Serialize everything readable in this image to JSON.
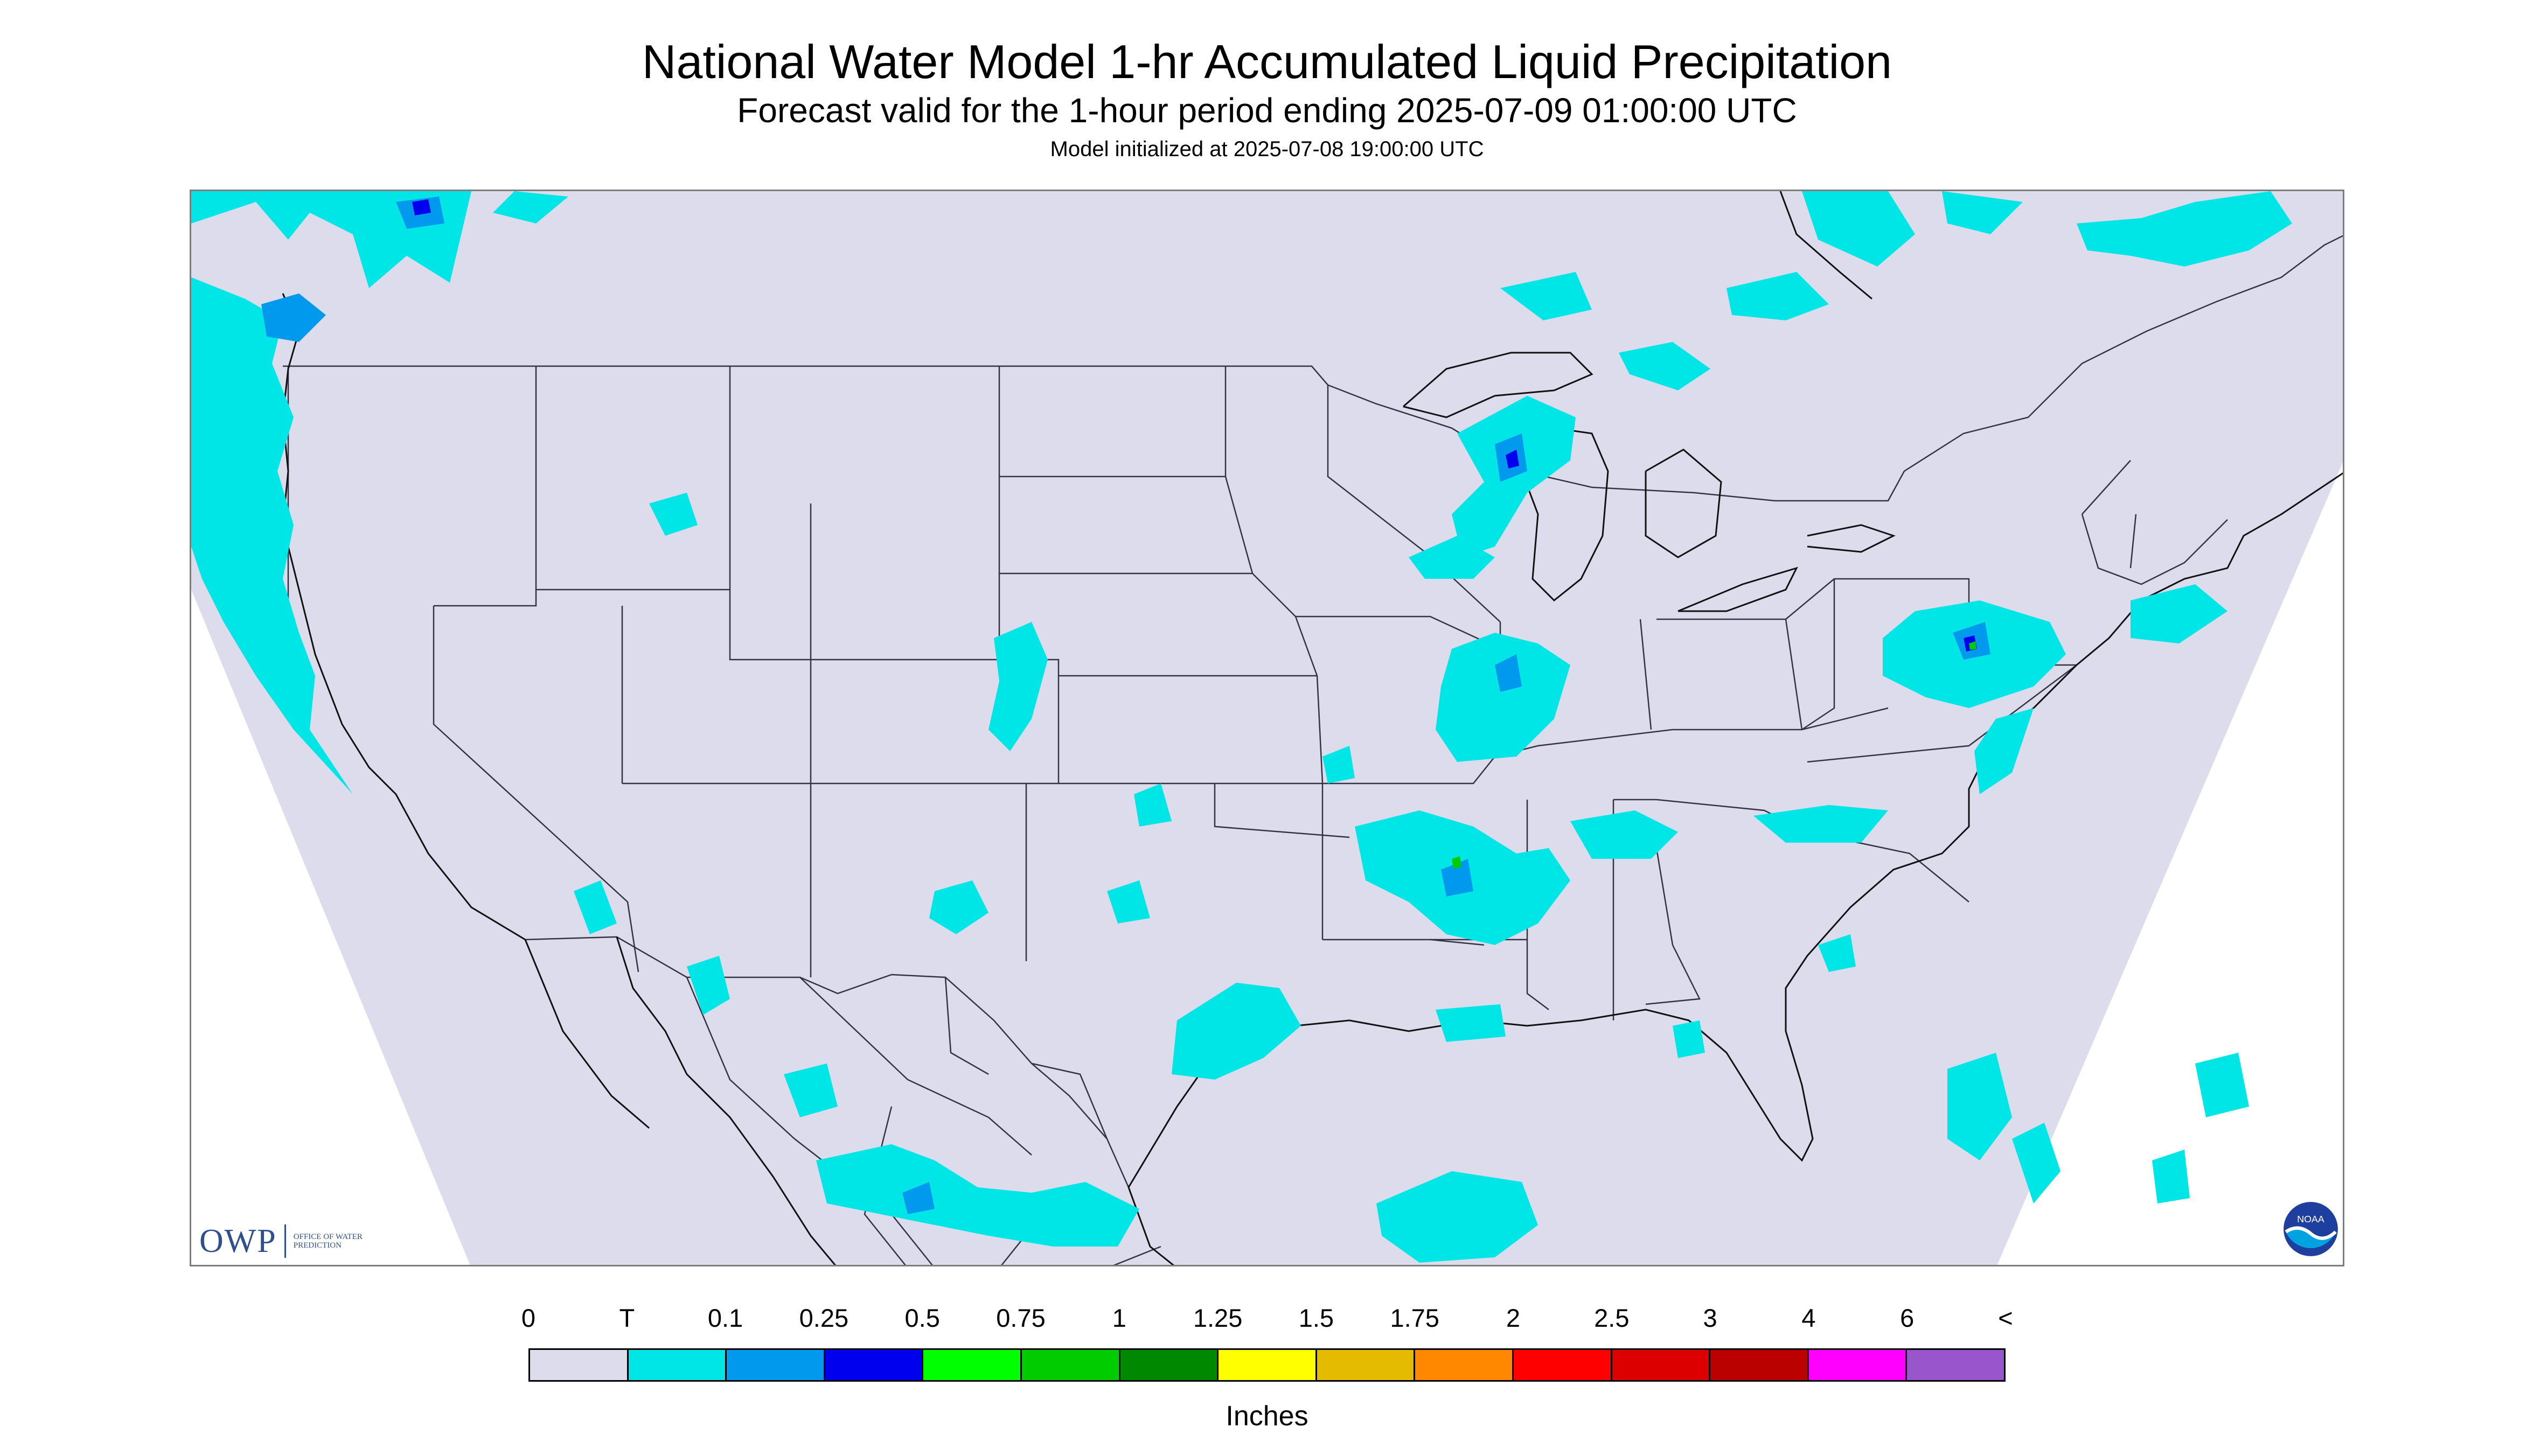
{
  "header": {
    "title": "National Water Model 1-hr Accumulated Liquid Precipitation",
    "subtitle": "Forecast valid for the 1-hour period ending 2025-07-09 01:00:00 UTC",
    "init": "Model initialized at 2025-07-08 19:00:00 UTC"
  },
  "logos": {
    "owp_mark": "OWP",
    "owp_sub": "OFFICE OF WATER PREDICTION",
    "noaa_mark": "NOAA"
  },
  "legend": {
    "units": "Inches",
    "tick_labels": [
      "0",
      "T",
      "0.1",
      "0.25",
      "0.5",
      "0.75",
      "1",
      "1.25",
      "1.5",
      "1.75",
      "2",
      "2.5",
      "3",
      "4",
      "6",
      "<"
    ],
    "bins": [
      {
        "color": "#dcdcec"
      },
      {
        "color": "#00e5e5"
      },
      {
        "color": "#0099ee"
      },
      {
        "color": "#0000ee"
      },
      {
        "color": "#00ff00"
      },
      {
        "color": "#00cc00"
      },
      {
        "color": "#008800"
      },
      {
        "color": "#ffff00"
      },
      {
        "color": "#e5bb00"
      },
      {
        "color": "#ff8800"
      },
      {
        "color": "#ff0000"
      },
      {
        "color": "#dd0000"
      },
      {
        "color": "#bb0000"
      },
      {
        "color": "#ff00ff"
      },
      {
        "color": "#9955cc"
      }
    ]
  },
  "map": {
    "domain_fill": "#dcdcec",
    "outside_fill": "#ffffff",
    "precip_colors": {
      "trace": "#00e5e5",
      "light": "#0099ee",
      "moderate": "#0000ee",
      "heavy": "#00cc00"
    }
  }
}
